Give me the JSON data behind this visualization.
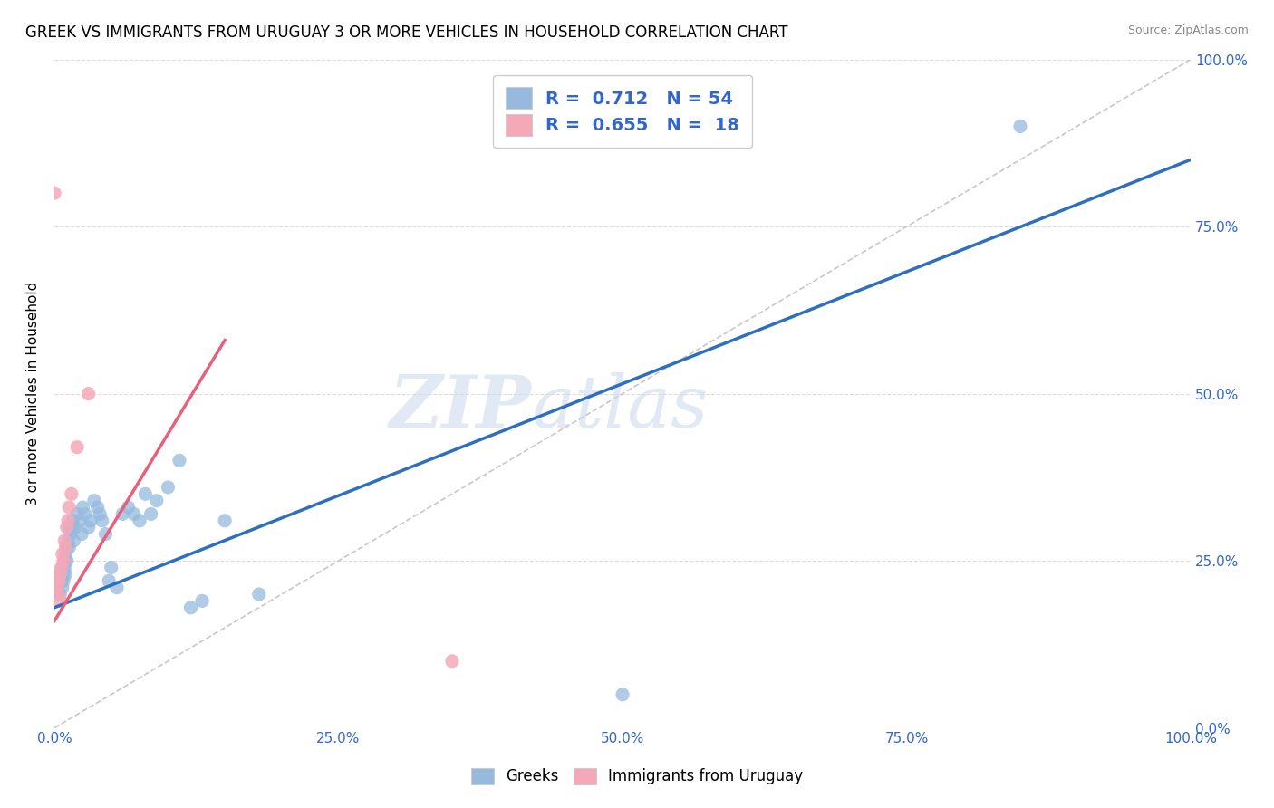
{
  "title": "GREEK VS IMMIGRANTS FROM URUGUAY 3 OR MORE VEHICLES IN HOUSEHOLD CORRELATION CHART",
  "source": "Source: ZipAtlas.com",
  "ylabel": "3 or more Vehicles in Household",
  "xlim": [
    0,
    1
  ],
  "ylim": [
    0,
    1
  ],
  "x_ticks": [
    0.0,
    0.25,
    0.5,
    0.75,
    1.0
  ],
  "y_ticks": [
    0.0,
    0.25,
    0.5,
    0.75,
    1.0
  ],
  "x_tick_labels": [
    "0.0%",
    "25.0%",
    "50.0%",
    "75.0%",
    "100.0%"
  ],
  "right_y_tick_labels": [
    "0.0%",
    "25.0%",
    "50.0%",
    "75.0%",
    "100.0%"
  ],
  "greek_R": 0.712,
  "greek_N": 54,
  "uruguay_R": 0.655,
  "uruguay_N": 18,
  "blue_color": "#95BADE",
  "pink_color": "#F4A8B8",
  "blue_line_color": "#2E6FBF",
  "pink_line_color": "#E8607A",
  "diagonal_color": "#C8C8C8",
  "legend_blue_color": "#95BADE",
  "legend_pink_color": "#F4A8B8",
  "tick_label_color": "#3366CC",
  "greeks_x": [
    0.002,
    0.003,
    0.004,
    0.005,
    0.005,
    0.006,
    0.007,
    0.007,
    0.008,
    0.008,
    0.009,
    0.009,
    0.01,
    0.01,
    0.011,
    0.011,
    0.012,
    0.013,
    0.013,
    0.014,
    0.015,
    0.016,
    0.017,
    0.018,
    0.02,
    0.022,
    0.024,
    0.025,
    0.027,
    0.03,
    0.032,
    0.035,
    0.038,
    0.04,
    0.042,
    0.045,
    0.048,
    0.05,
    0.055,
    0.06,
    0.065,
    0.07,
    0.075,
    0.08,
    0.085,
    0.09,
    0.1,
    0.11,
    0.12,
    0.13,
    0.15,
    0.18,
    0.5,
    0.85
  ],
  "greeks_y": [
    0.21,
    0.2,
    0.22,
    0.23,
    0.2,
    0.22,
    0.21,
    0.24,
    0.23,
    0.22,
    0.25,
    0.24,
    0.26,
    0.23,
    0.27,
    0.25,
    0.28,
    0.3,
    0.27,
    0.29,
    0.3,
    0.31,
    0.28,
    0.3,
    0.32,
    0.31,
    0.29,
    0.33,
    0.32,
    0.3,
    0.31,
    0.34,
    0.33,
    0.32,
    0.31,
    0.29,
    0.22,
    0.24,
    0.21,
    0.32,
    0.33,
    0.32,
    0.31,
    0.35,
    0.32,
    0.34,
    0.36,
    0.4,
    0.18,
    0.19,
    0.31,
    0.2,
    0.05,
    0.9
  ],
  "uruguay_x": [
    0.002,
    0.003,
    0.004,
    0.005,
    0.005,
    0.006,
    0.007,
    0.008,
    0.009,
    0.01,
    0.011,
    0.012,
    0.013,
    0.015,
    0.02,
    0.03,
    0.0,
    0.35
  ],
  "uruguay_y": [
    0.21,
    0.2,
    0.22,
    0.19,
    0.23,
    0.24,
    0.26,
    0.25,
    0.28,
    0.27,
    0.3,
    0.31,
    0.33,
    0.35,
    0.42,
    0.5,
    0.8,
    0.1
  ],
  "blue_line_x": [
    0.0,
    1.0
  ],
  "blue_line_y": [
    0.18,
    0.85
  ],
  "pink_line_x": [
    0.0,
    0.15
  ],
  "pink_line_y": [
    0.16,
    0.58
  ]
}
